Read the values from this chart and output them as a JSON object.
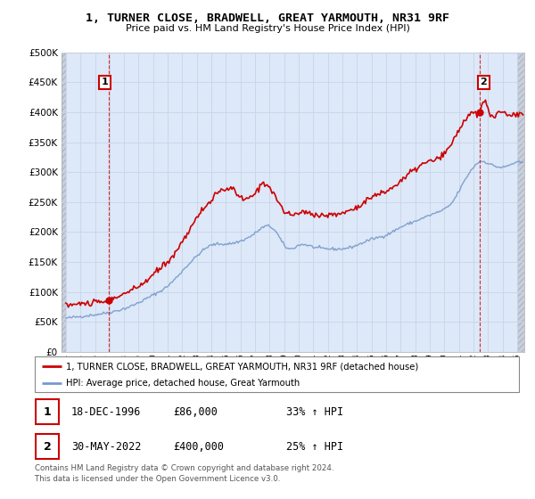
{
  "title": "1, TURNER CLOSE, BRADWELL, GREAT YARMOUTH, NR31 9RF",
  "subtitle": "Price paid vs. HM Land Registry's House Price Index (HPI)",
  "ylim": [
    0,
    500000
  ],
  "yticks": [
    0,
    50000,
    100000,
    150000,
    200000,
    250000,
    300000,
    350000,
    400000,
    450000,
    500000
  ],
  "xlim_start": 1993.7,
  "xlim_end": 2025.5,
  "hpi_color": "#7799cc",
  "price_color": "#cc0000",
  "point1_x": 1996.97,
  "point1_y": 86000,
  "point1_label": "1",
  "point2_x": 2022.41,
  "point2_y": 400000,
  "point2_label": "2",
  "legend_line1": "1, TURNER CLOSE, BRADWELL, GREAT YARMOUTH, NR31 9RF (detached house)",
  "legend_line2": "HPI: Average price, detached house, Great Yarmouth",
  "table_row1": [
    "1",
    "18-DEC-1996",
    "£86,000",
    "33% ↑ HPI"
  ],
  "table_row2": [
    "2",
    "30-MAY-2022",
    "£400,000",
    "25% ↑ HPI"
  ],
  "copyright_text": "Contains HM Land Registry data © Crown copyright and database right 2024.\nThis data is licensed under the Open Government Licence v3.0.",
  "grid_color": "#c8d4e8",
  "bg_color": "#ffffff",
  "plot_bg_color": "#dde8f8"
}
